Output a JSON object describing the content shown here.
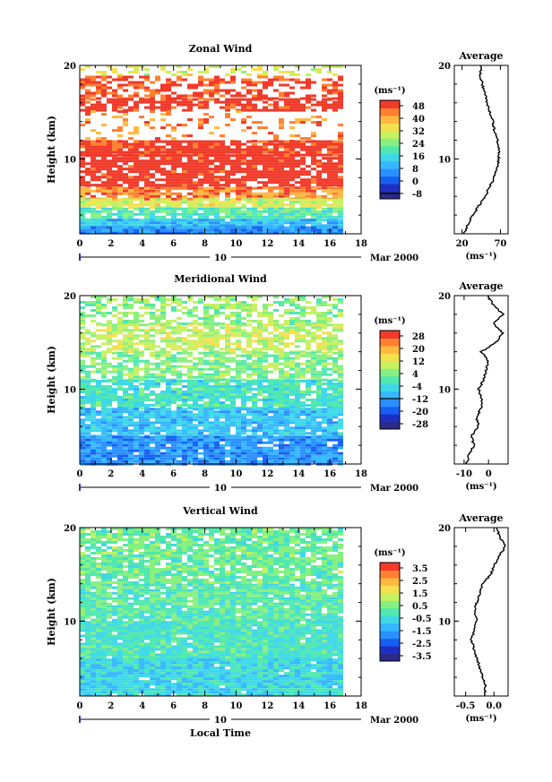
{
  "chart_data": [
    {
      "type": "heatmap",
      "title": "Zonal Wind",
      "xlabel": "",
      "ylabel": "Height (km)",
      "x_ticks": [
        "0",
        "2",
        "4",
        "6",
        "8",
        "10",
        "12",
        "14",
        "16",
        "18"
      ],
      "y_ticks": [
        "10",
        "20"
      ],
      "xlim": [
        0,
        18
      ],
      "ylim": [
        2,
        20
      ],
      "data_xlim": [
        0,
        16.8
      ],
      "date_label": "10",
      "date_suffix": "Mar 2000",
      "colorbar": {
        "unit_label": "(ms⁻¹)",
        "ticks": [
          "48",
          "40",
          "32",
          "24",
          "16",
          "8",
          "0",
          "-8"
        ],
        "range": [
          -12,
          52
        ],
        "colors": [
          "#2a2a8a",
          "#1f2fc4",
          "#1560f0",
          "#2a90ff",
          "#35b8ff",
          "#3fd8e8",
          "#50e8b0",
          "#88f080",
          "#c8f060",
          "#f5e050",
          "#ffb840",
          "#ff8030",
          "#f03a2a"
        ],
        "zero_line": 0
      },
      "field": [
        {
          "h": [
            18.9,
            20
          ],
          "v": 32,
          "cov": 0.35
        },
        {
          "h": [
            16.5,
            18.9
          ],
          "v": 48,
          "cov": 0.5
        },
        {
          "h": [
            15.2,
            16.5
          ],
          "v": 52,
          "cov": 0.7
        },
        {
          "h": [
            12,
            15.2
          ],
          "v": 44,
          "cov": 0.2
        },
        {
          "h": [
            10.5,
            12
          ],
          "v": 50,
          "cov": 0.9
        },
        {
          "h": [
            7,
            10.5
          ],
          "v": 52,
          "cov": 0.82
        },
        {
          "h": [
            5.8,
            7
          ],
          "v": 44,
          "cov": 0.8
        },
        {
          "h": [
            4.8,
            5.8
          ],
          "v": 32,
          "cov": 0.85
        },
        {
          "h": [
            3.6,
            4.8
          ],
          "v": 20,
          "cov": 0.9
        },
        {
          "h": [
            2.8,
            3.6
          ],
          "v": 12,
          "cov": 0.95
        },
        {
          "h": [
            2,
            2.8
          ],
          "v": 6,
          "cov": 1.0
        }
      ],
      "profile": {
        "title": "Average",
        "x_ticks": [
          "20",
          "70"
        ],
        "xlim": [
          10,
          80
        ],
        "x_tick_values": [
          20,
          70
        ],
        "y_ticks": [
          "10",
          "20"
        ],
        "xlabel": "(ms⁻¹)",
        "heights": [
          2,
          3,
          4,
          5,
          6,
          7,
          8,
          9,
          10,
          11,
          12,
          13,
          14,
          15,
          16,
          17,
          18,
          19,
          20
        ],
        "values": [
          22,
          28,
          34,
          42,
          50,
          56,
          62,
          66,
          68,
          68,
          66,
          62,
          60,
          56,
          52,
          50,
          46,
          44,
          44
        ]
      }
    },
    {
      "type": "heatmap",
      "title": "Meridional Wind",
      "xlabel": "",
      "ylabel": "Height (km)",
      "x_ticks": [
        "0",
        "2",
        "4",
        "6",
        "8",
        "10",
        "12",
        "14",
        "16",
        "18"
      ],
      "y_ticks": [
        "10",
        "20"
      ],
      "xlim": [
        0,
        18
      ],
      "ylim": [
        2,
        20
      ],
      "data_xlim": [
        0,
        16.8
      ],
      "date_label": "10",
      "date_suffix": "Mar 2000",
      "colorbar": {
        "unit_label": "(ms⁻¹)",
        "ticks": [
          "28",
          "20",
          "12",
          "4",
          "-4",
          "-12",
          "-20",
          "-28"
        ],
        "range": [
          -32,
          32
        ],
        "colors": [
          "#2a2a8a",
          "#1f2fc4",
          "#1560f0",
          "#2a90ff",
          "#35b8ff",
          "#3fd8e8",
          "#50e8b0",
          "#88f080",
          "#c8f060",
          "#f5e050",
          "#ffb840",
          "#ff8030",
          "#f03a2a"
        ],
        "zero_line": 2
      },
      "field": [
        {
          "h": [
            17,
            20
          ],
          "v": 6,
          "cov": 0.55
        },
        {
          "h": [
            14,
            17
          ],
          "v": 10,
          "cov": 0.7
        },
        {
          "h": [
            11,
            14
          ],
          "v": 4,
          "cov": 0.75
        },
        {
          "h": [
            8,
            11
          ],
          "v": -2,
          "cov": 0.85
        },
        {
          "h": [
            5,
            8
          ],
          "v": -8,
          "cov": 0.9
        },
        {
          "h": [
            2,
            5
          ],
          "v": -14,
          "cov": 0.95
        }
      ],
      "profile": {
        "title": "Average",
        "x_ticks": [
          "-10",
          "0"
        ],
        "xlim": [
          -14,
          8
        ],
        "x_tick_values": [
          -10,
          0
        ],
        "y_ticks": [
          "10",
          "20"
        ],
        "xlabel": "(ms⁻¹)",
        "heights": [
          2,
          3,
          4,
          5,
          6,
          7,
          8,
          9,
          10,
          11,
          12,
          13,
          14,
          15,
          16,
          17,
          18,
          19,
          20
        ],
        "values": [
          -9,
          -8,
          -6,
          -7,
          -4,
          -5,
          -3,
          -3,
          -4,
          -2,
          -1,
          0,
          -3,
          3,
          6,
          2,
          6,
          2,
          0
        ]
      }
    },
    {
      "type": "heatmap",
      "title": "Vertical Wind",
      "xlabel": "Local Time",
      "ylabel": "Height (km)",
      "x_ticks": [
        "0",
        "2",
        "4",
        "6",
        "8",
        "10",
        "12",
        "14",
        "16",
        "18"
      ],
      "y_ticks": [
        "10",
        "20"
      ],
      "xlim": [
        0,
        18
      ],
      "ylim": [
        2,
        20
      ],
      "data_xlim": [
        0,
        16.8
      ],
      "date_label": "10",
      "date_suffix": "Mar 2000",
      "colorbar": {
        "unit_label": "(ms⁻¹)",
        "ticks": [
          "3.5",
          "2.5",
          "1.5",
          "0.5",
          "-0.5",
          "-1.5",
          "-2.5",
          "-3.5"
        ],
        "range": [
          -4,
          4
        ],
        "colors": [
          "#2a2a8a",
          "#1f2fc4",
          "#1560f0",
          "#2a90ff",
          "#35b8ff",
          "#3fd8e8",
          "#50e8b0",
          "#88f080",
          "#c8f060",
          "#f5e050",
          "#ffb840",
          "#ff8030",
          "#f03a2a"
        ],
        "zero_line": null
      },
      "field": [
        {
          "h": [
            14,
            20
          ],
          "v": 0.3,
          "cov": 0.85
        },
        {
          "h": [
            10,
            14
          ],
          "v": 0.1,
          "cov": 0.92
        },
        {
          "h": [
            6,
            10
          ],
          "v": -0.2,
          "cov": 0.97
        },
        {
          "h": [
            2,
            6
          ],
          "v": -0.6,
          "cov": 0.97
        }
      ],
      "profile": {
        "title": "Average",
        "x_ticks": [
          "-0.5",
          "0.0"
        ],
        "xlim": [
          -0.7,
          0.25
        ],
        "x_tick_values": [
          -0.5,
          0.0
        ],
        "y_ticks": [
          "10",
          "20"
        ],
        "xlabel": "(ms⁻¹)",
        "heights": [
          2,
          3,
          4,
          5,
          6,
          7,
          8,
          9,
          10,
          11,
          12,
          13,
          14,
          15,
          16,
          17,
          18,
          19,
          20
        ],
        "values": [
          -0.15,
          -0.15,
          -0.2,
          -0.25,
          -0.3,
          -0.35,
          -0.4,
          -0.35,
          -0.3,
          -0.35,
          -0.3,
          -0.25,
          -0.2,
          -0.05,
          0.0,
          0.1,
          0.2,
          0.1,
          0.05
        ]
      }
    }
  ]
}
